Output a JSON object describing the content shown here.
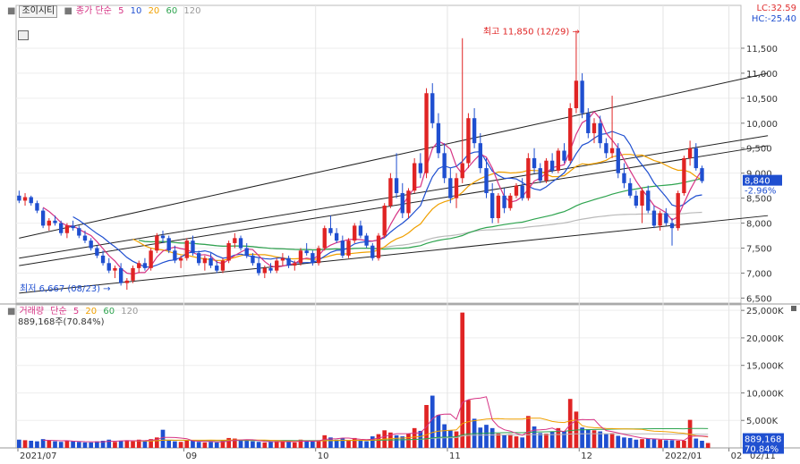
{
  "chart_data": [
    {
      "type": "candlestick",
      "panel": "price",
      "legend": {
        "stock_name": "조이시티",
        "ma_label": "종가 단순",
        "periods": [
          "5",
          "10",
          "20",
          "60",
          "120"
        ],
        "colors": [
          "#d63384",
          "#1f4fd0",
          "#f0a000",
          "#2ea44f",
          "#999999"
        ]
      },
      "right_labels": {
        "lc": "LC:32.59",
        "hc": "HC:-25.40"
      },
      "y_ticks": [
        "11,500",
        "11,000",
        "10,500",
        "10,000",
        "9,500",
        "9,000",
        "8,500",
        "8,000",
        "7,500",
        "7,000",
        "6,500"
      ],
      "ylim": [
        6400,
        12000
      ],
      "x_ticks": [
        "2021/07",
        "09",
        "10",
        "11",
        "12",
        "2022/01",
        "02",
        "02/11"
      ],
      "annotations": {
        "high": {
          "text": "최고 11,850 (12/29)",
          "value": 11850
        },
        "low": {
          "text": "최저 6,667 (08/23)",
          "value": 6667
        }
      },
      "last_price": {
        "price": "8,840",
        "change": "-2.96%"
      },
      "candles_ohlc": [
        [
          8550,
          8650,
          8400,
          8450
        ],
        [
          8450,
          8600,
          8350,
          8520
        ],
        [
          8520,
          8550,
          8350,
          8400
        ],
        [
          8400,
          8450,
          8200,
          8250
        ],
        [
          8250,
          8300,
          7900,
          7950
        ],
        [
          7950,
          8100,
          7850,
          8050
        ],
        [
          8050,
          8150,
          7950,
          8000
        ],
        [
          8000,
          8050,
          7750,
          7800
        ],
        [
          7800,
          8000,
          7700,
          7950
        ],
        [
          7950,
          8050,
          7850,
          7900
        ],
        [
          7900,
          7950,
          7700,
          7750
        ],
        [
          7750,
          7850,
          7600,
          7650
        ],
        [
          7650,
          7700,
          7450,
          7500
        ],
        [
          7500,
          7550,
          7300,
          7350
        ],
        [
          7350,
          7450,
          7150,
          7200
        ],
        [
          7200,
          7300,
          7000,
          7050
        ],
        [
          7050,
          7150,
          6900,
          7100
        ],
        [
          7100,
          7200,
          6750,
          6800
        ],
        [
          6800,
          6900,
          6667,
          6850
        ],
        [
          6850,
          7150,
          6800,
          7100
        ],
        [
          7100,
          7250,
          7000,
          7200
        ],
        [
          7200,
          7300,
          7050,
          7100
        ],
        [
          7100,
          7500,
          7050,
          7450
        ],
        [
          7450,
          7800,
          7400,
          7750
        ],
        [
          7750,
          7850,
          7600,
          7700
        ],
        [
          7700,
          7750,
          7400,
          7450
        ],
        [
          7450,
          7550,
          7200,
          7250
        ],
        [
          7250,
          7350,
          7100,
          7300
        ],
        [
          7300,
          7700,
          7250,
          7650
        ],
        [
          7650,
          7750,
          7350,
          7400
        ],
        [
          7400,
          7450,
          7150,
          7200
        ],
        [
          7200,
          7350,
          7050,
          7300
        ],
        [
          7300,
          7400,
          7100,
          7150
        ],
        [
          7150,
          7250,
          7000,
          7050
        ],
        [
          7050,
          7300,
          7000,
          7250
        ],
        [
          7250,
          7650,
          7200,
          7600
        ],
        [
          7600,
          7800,
          7500,
          7700
        ],
        [
          7700,
          7750,
          7450,
          7500
        ],
        [
          7500,
          7600,
          7300,
          7350
        ],
        [
          7350,
          7400,
          7150,
          7200
        ],
        [
          7200,
          7300,
          6950,
          7000
        ],
        [
          7000,
          7150,
          6900,
          7100
        ],
        [
          7100,
          7200,
          7000,
          7050
        ],
        [
          7050,
          7300,
          7000,
          7250
        ],
        [
          7250,
          7400,
          7150,
          7300
        ],
        [
          7300,
          7350,
          7100,
          7150
        ],
        [
          7150,
          7250,
          7050,
          7200
        ],
        [
          7200,
          7500,
          7150,
          7450
        ],
        [
          7450,
          7600,
          7350,
          7400
        ],
        [
          7400,
          7450,
          7150,
          7200
        ],
        [
          7200,
          7550,
          7150,
          7500
        ],
        [
          7500,
          7950,
          7450,
          7900
        ],
        [
          7900,
          8150,
          7750,
          7800
        ],
        [
          7800,
          7900,
          7600,
          7650
        ],
        [
          7650,
          7750,
          7300,
          7350
        ],
        [
          7350,
          7700,
          7300,
          7650
        ],
        [
          7650,
          8000,
          7600,
          7950
        ],
        [
          7950,
          8050,
          7700,
          7750
        ],
        [
          7750,
          7800,
          7500,
          7550
        ],
        [
          7550,
          7600,
          7250,
          7300
        ],
        [
          7300,
          7800,
          7250,
          7750
        ],
        [
          7750,
          8400,
          7700,
          8350
        ],
        [
          8350,
          9000,
          8300,
          8900
        ],
        [
          8900,
          9400,
          8500,
          8600
        ],
        [
          8600,
          8800,
          8100,
          8200
        ],
        [
          8200,
          8700,
          8100,
          8650
        ],
        [
          8650,
          9300,
          8600,
          9200
        ],
        [
          9200,
          9400,
          8900,
          9000
        ],
        [
          9000,
          10700,
          8900,
          10600
        ],
        [
          10600,
          10800,
          9900,
          10000
        ],
        [
          10000,
          10200,
          9300,
          9400
        ],
        [
          9400,
          9600,
          8800,
          8900
        ],
        [
          8900,
          9100,
          8400,
          8500
        ],
        [
          8500,
          9000,
          8300,
          8900
        ],
        [
          8900,
          11700,
          8800,
          9200
        ],
        [
          9200,
          10200,
          9100,
          10100
        ],
        [
          10100,
          10300,
          9500,
          9600
        ],
        [
          9600,
          9800,
          9000,
          9100
        ],
        [
          9100,
          9300,
          8500,
          8600
        ],
        [
          8600,
          8800,
          8000,
          8100
        ],
        [
          8100,
          8600,
          8000,
          8550
        ],
        [
          8550,
          8700,
          8200,
          8300
        ],
        [
          8300,
          8600,
          8250,
          8550
        ],
        [
          8550,
          8800,
          8500,
          8750
        ],
        [
          8750,
          8900,
          8450,
          8500
        ],
        [
          8500,
          9400,
          8450,
          9300
        ],
        [
          9300,
          9500,
          9000,
          9100
        ],
        [
          9100,
          9200,
          8800,
          8850
        ],
        [
          8850,
          9300,
          8800,
          9250
        ],
        [
          9250,
          9400,
          9000,
          9050
        ],
        [
          9050,
          9500,
          9000,
          9450
        ],
        [
          9450,
          9600,
          9200,
          9250
        ],
        [
          9250,
          10400,
          9200,
          10300
        ],
        [
          10300,
          11850,
          10200,
          10850
        ],
        [
          10850,
          11000,
          10100,
          10200
        ],
        [
          10200,
          10300,
          9700,
          9800
        ],
        [
          9800,
          10100,
          9600,
          10000
        ],
        [
          10000,
          10150,
          9500,
          9600
        ],
        [
          9600,
          9700,
          9300,
          9400
        ],
        [
          9400,
          10550,
          9300,
          9500
        ],
        [
          9500,
          9600,
          8900,
          9000
        ],
        [
          9000,
          9200,
          8700,
          8800
        ],
        [
          8800,
          8900,
          8500,
          8550
        ],
        [
          8550,
          8650,
          8300,
          8350
        ],
        [
          8350,
          8700,
          8000,
          8650
        ],
        [
          8650,
          8750,
          8200,
          8250
        ],
        [
          8250,
          8350,
          7900,
          7950
        ],
        [
          7950,
          8250,
          7850,
          8200
        ],
        [
          8200,
          8300,
          7950,
          8000
        ],
        [
          8000,
          8100,
          7550,
          7900
        ],
        [
          7900,
          8650,
          7850,
          8600
        ],
        [
          8600,
          9350,
          8550,
          9300
        ],
        [
          9300,
          9650,
          9150,
          9500
        ],
        [
          9500,
          9600,
          9050,
          9100
        ],
        [
          9100,
          9150,
          8800,
          8840
        ]
      ],
      "trend_lines": [
        {
          "a": [
            0,
            7700
          ],
          "b": [
            125,
            11000
          ]
        },
        {
          "a": [
            0,
            7300
          ],
          "b": [
            125,
            9750
          ]
        },
        {
          "a": [
            0,
            7150
          ],
          "b": [
            125,
            9550
          ]
        },
        {
          "a": [
            0,
            6600
          ],
          "b": [
            125,
            8150
          ]
        }
      ]
    },
    {
      "type": "bar",
      "panel": "volume",
      "legend": {
        "label": "거래량",
        "ma_label": "단순",
        "periods": [
          "5",
          "20",
          "60",
          "120"
        ],
        "colors": [
          "#d63384",
          "#f0a000",
          "#2ea44f",
          "#999999"
        ],
        "current_text": "889,168주(70.84%)"
      },
      "y_ticks": [
        "25,000K",
        "20,000K",
        "15,000K",
        "10,000K",
        "5,000K"
      ],
      "ylim": [
        0,
        26000
      ],
      "last_volume": {
        "value": "889,168",
        "ratio": "70.84%"
      },
      "volumes_k": [
        1500,
        1400,
        1300,
        1200,
        1600,
        1400,
        1200,
        1100,
        1300,
        1200,
        1100,
        1000,
        1000,
        1200,
        1300,
        1500,
        1100,
        1300,
        1400,
        1200,
        1500,
        1300,
        1600,
        1900,
        3300,
        1400,
        1200,
        1100,
        1400,
        1300,
        1100,
        1000,
        1100,
        1000,
        1300,
        1800,
        1700,
        1400,
        1300,
        1200,
        1100,
        1000,
        1100,
        1200,
        1300,
        1100,
        1000,
        1500,
        1300,
        1200,
        1400,
        2300,
        1900,
        1500,
        1800,
        1400,
        1800,
        1300,
        1200,
        2100,
        2500,
        3200,
        2800,
        2300,
        2100,
        2600,
        3600,
        3100,
        7800,
        9500,
        6000,
        4300,
        3200,
        3000,
        24600,
        8700,
        5300,
        3700,
        4200,
        3600,
        2600,
        2400,
        2500,
        2100,
        1900,
        5800,
        3900,
        2700,
        2600,
        3000,
        3600,
        3000,
        8900,
        6600,
        3700,
        3400,
        3200,
        3000,
        2500,
        2700,
        2200,
        1900,
        1800,
        1500,
        1600,
        1700,
        1600,
        1500,
        1400,
        1400,
        1300,
        1300,
        5100,
        1700,
        1300,
        889
      ]
    }
  ]
}
